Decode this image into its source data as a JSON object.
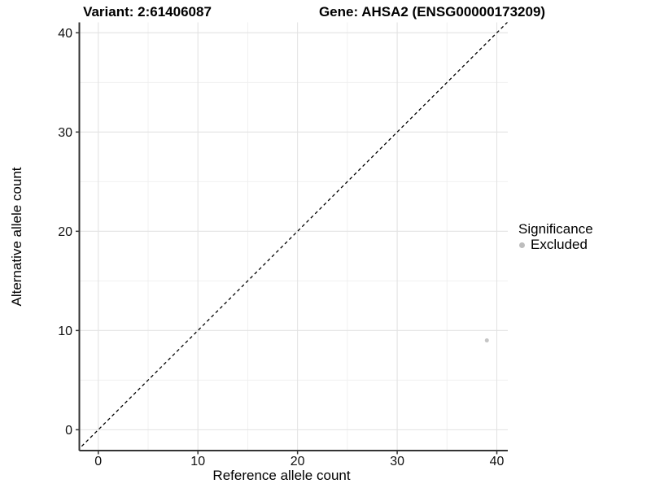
{
  "titles": {
    "variant": "Variant: 2:61406087",
    "gene": "Gene: AHSA2 (ENSG00000173209)"
  },
  "axes": {
    "x_label": "Reference allele count",
    "y_label": "Alternative allele count"
  },
  "legend": {
    "title": "Significance",
    "items": [
      {
        "label": "Excluded",
        "color": "#bdbdbd"
      }
    ]
  },
  "colors": {
    "axis_line": "#333333",
    "tick_mark": "#333333",
    "grid_major": "#e3e3e3",
    "grid_minor": "#f0f0f0",
    "dashed_line": "#000000",
    "point": "#c5c5c5",
    "text": "#111111",
    "background": "#ffffff"
  },
  "chart_data": {
    "type": "scatter",
    "title": "Variant: 2:61406087 | Gene: AHSA2 (ENSG00000173209)",
    "xlabel": "Reference allele count",
    "ylabel": "Alternative allele count",
    "xlim": [
      -1.9,
      41.1
    ],
    "ylim": [
      -2.1,
      41.05
    ],
    "x_ticks": [
      0,
      10,
      20,
      30,
      40
    ],
    "y_ticks": [
      0,
      10,
      20,
      30,
      40
    ],
    "x_minor_ticks": [
      5,
      15,
      25,
      35
    ],
    "y_minor_ticks": [
      5,
      15,
      25,
      35
    ],
    "grid": "major and minor gridlines, light gray, white panel",
    "legend_position": "right",
    "series": [
      {
        "name": "Excluded",
        "significance": "Excluded",
        "color": "#c5c5c5",
        "points": [
          [
            39,
            9
          ]
        ]
      }
    ],
    "reference_line": {
      "type": "identity y=x",
      "style": "dashed",
      "color": "#000000",
      "from": [
        -2.1,
        -2.1
      ],
      "to": [
        41.1,
        41.1
      ]
    }
  }
}
